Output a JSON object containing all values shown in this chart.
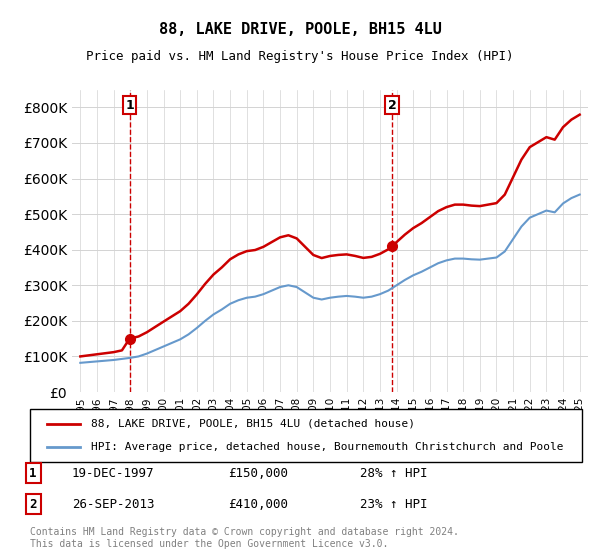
{
  "title": "88, LAKE DRIVE, POOLE, BH15 4LU",
  "subtitle": "Price paid vs. HM Land Registry's House Price Index (HPI)",
  "legend_line1": "88, LAKE DRIVE, POOLE, BH15 4LU (detached house)",
  "legend_line2": "HPI: Average price, detached house, Bournemouth Christchurch and Poole",
  "footnote": "Contains HM Land Registry data © Crown copyright and database right 2024.\nThis data is licensed under the Open Government Licence v3.0.",
  "sale1_label": "1",
  "sale1_date": "19-DEC-1997",
  "sale1_price": "£150,000",
  "sale1_hpi": "28% ↑ HPI",
  "sale2_label": "2",
  "sale2_date": "26-SEP-2013",
  "sale2_price": "£410,000",
  "sale2_hpi": "23% ↑ HPI",
  "red_color": "#cc0000",
  "blue_color": "#6699cc",
  "sale_marker_color": "#cc0000",
  "vline_color": "#cc0000",
  "ylim": [
    0,
    850000
  ],
  "yticks": [
    0,
    100000,
    200000,
    300000,
    400000,
    500000,
    600000,
    700000,
    800000
  ],
  "sale1_year": 1997.96,
  "sale2_year": 2013.73,
  "sale1_price_val": 150000,
  "sale2_price_val": 410000
}
